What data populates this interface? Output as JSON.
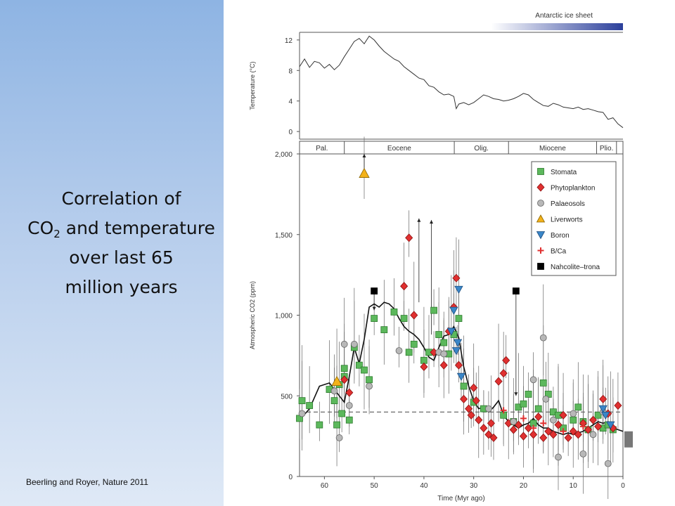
{
  "slide": {
    "title_line1": "Correlation of",
    "title_co": "CO",
    "title_sub": "2",
    "title_line2_rest": " and temperature",
    "title_line3": "over last 65",
    "title_line4": "million years",
    "citation": "Beerling and Royer, Nature 2011"
  },
  "colors": {
    "panel_top": "#8eb4e3",
    "panel_bottom": "#dfe9f6",
    "stomata": "#5cb85c",
    "phytoplankton": "#e03030",
    "palaeosols": "#b8b8b8",
    "liverworts": "#f3b21a",
    "boron": "#3a86c8",
    "bca": "#e03030",
    "nahcolite": "#000000",
    "ice": "#2b3f9b"
  },
  "chart_data": [
    {
      "type": "line",
      "title": "",
      "ice_label": "Antarctic ice sheet",
      "xlabel": "",
      "ylabel": "Temperature (°C)",
      "xlim": [
        65,
        0
      ],
      "ylim": [
        -1,
        13
      ],
      "yticks": [
        0,
        4,
        8,
        12
      ],
      "x": [
        65,
        64,
        63,
        62,
        61,
        60,
        59,
        58,
        57,
        56,
        55,
        54,
        53,
        52,
        51,
        50,
        49,
        48,
        47,
        46,
        45,
        44,
        43,
        42,
        41,
        40,
        39,
        38,
        37,
        36,
        35,
        34,
        33.5,
        33,
        32,
        31,
        30,
        29,
        28,
        27,
        26,
        25,
        24,
        23,
        22,
        21,
        20,
        19,
        18,
        17,
        16,
        15,
        14,
        13,
        12,
        11,
        10,
        9,
        8,
        7,
        6,
        5,
        4,
        3,
        2,
        1,
        0
      ],
      "values": [
        8.5,
        9.5,
        8.4,
        9.2,
        9.0,
        8.3,
        8.8,
        8.1,
        8.7,
        9.8,
        10.8,
        11.8,
        12.2,
        11.5,
        12.5,
        12.0,
        11.2,
        10.5,
        10.0,
        9.5,
        9.2,
        8.5,
        8.0,
        7.5,
        7.0,
        6.8,
        6.0,
        5.8,
        5.2,
        4.8,
        4.9,
        4.6,
        3.0,
        3.6,
        3.8,
        3.5,
        3.8,
        4.3,
        4.8,
        4.6,
        4.3,
        4.2,
        4.0,
        4.1,
        4.3,
        4.6,
        5.0,
        4.8,
        4.2,
        3.8,
        3.4,
        3.3,
        3.7,
        3.5,
        3.2,
        3.1,
        3.0,
        3.2,
        2.9,
        3.0,
        2.8,
        2.6,
        2.5,
        1.6,
        1.8,
        1.0,
        0.5
      ],
      "ice_sheet_range": [
        35,
        0
      ]
    },
    {
      "type": "scatter",
      "title": "",
      "xlabel": "Time (Myr ago)",
      "ylabel": "Atmospheric CO2 (ppm)",
      "xlim": [
        65,
        0
      ],
      "ylim": [
        0,
        2000
      ],
      "xticks": [
        60,
        50,
        40,
        30,
        20,
        10,
        0
      ],
      "yticks": [
        0,
        500,
        1000,
        1500,
        2000
      ],
      "epochs": [
        {
          "name": "Pal.",
          "start": 65,
          "end": 56
        },
        {
          "name": "Eocene",
          "start": 56,
          "end": 33.9
        },
        {
          "name": "Olig.",
          "start": 33.9,
          "end": 23
        },
        {
          "name": "Miocene",
          "start": 23,
          "end": 5.3
        },
        {
          "name": "Plio.",
          "start": 5.3,
          "end": 1.3
        }
      ],
      "reference_level": 400,
      "loess": {
        "x": [
          65,
          63,
          61,
          59,
          57,
          56,
          55,
          54,
          53,
          52,
          51,
          50,
          49,
          48,
          47,
          46,
          45,
          44,
          43,
          42,
          41,
          40,
          39,
          38,
          37,
          36,
          35,
          34,
          33,
          32,
          31,
          30,
          29,
          28,
          27,
          26,
          25,
          24,
          23,
          22,
          21,
          20,
          19,
          18,
          17,
          16,
          15,
          14,
          13,
          12,
          11,
          10,
          9,
          8,
          7,
          6,
          5,
          4,
          3,
          2,
          1,
          0
        ],
        "y": [
          350,
          420,
          560,
          580,
          500,
          460,
          620,
          800,
          700,
          850,
          1050,
          1070,
          1050,
          1080,
          1070,
          1040,
          980,
          930,
          900,
          880,
          850,
          800,
          740,
          720,
          800,
          870,
          880,
          930,
          860,
          680,
          560,
          470,
          420,
          430,
          400,
          430,
          470,
          380,
          340,
          320,
          300,
          320,
          330,
          360,
          320,
          300,
          300,
          280,
          270,
          260,
          270,
          260,
          270,
          280,
          300,
          320,
          340,
          330,
          340,
          300,
          290,
          280
        ]
      },
      "series": [
        {
          "name": "Stomata",
          "marker": "square",
          "x": [
            65,
            64.5,
            63,
            61,
            59,
            58,
            57.5,
            57,
            56.5,
            56,
            56,
            55,
            54,
            53,
            52,
            51,
            50,
            48,
            46,
            44,
            43,
            42,
            40,
            39,
            38,
            37,
            36,
            35,
            34,
            33,
            32,
            30,
            28,
            24,
            22,
            21,
            20,
            19,
            18,
            17,
            16,
            15,
            14,
            13,
            12,
            10,
            9,
            8,
            7,
            5,
            4,
            3,
            2
          ],
          "y": [
            360,
            470,
            440,
            320,
            540,
            470,
            320,
            570,
            390,
            620,
            670,
            350,
            800,
            690,
            660,
            600,
            980,
            910,
            1020,
            980,
            770,
            820,
            720,
            770,
            1030,
            880,
            830,
            760,
            880,
            980,
            560,
            460,
            420,
            380,
            340,
            430,
            450,
            510,
            330,
            420,
            580,
            510,
            400,
            380,
            300,
            350,
            430,
            340,
            290,
            380,
            300,
            320,
            290
          ]
        },
        {
          "name": "Phytoplankton",
          "marker": "diamond",
          "x": [
            56,
            55,
            44,
            43,
            42,
            40,
            38,
            36,
            35,
            34,
            33.5,
            33,
            32,
            31,
            30.5,
            30,
            29.5,
            29,
            28,
            27,
            26.5,
            26,
            25,
            24,
            23.5,
            23,
            22,
            21,
            20,
            19,
            18,
            17,
            16,
            15,
            14,
            13,
            12,
            11,
            10,
            9,
            8,
            7,
            6,
            5,
            4,
            3,
            2,
            1
          ],
          "y": [
            600,
            520,
            1180,
            1480,
            1000,
            680,
            770,
            690,
            900,
            1050,
            1230,
            690,
            480,
            420,
            380,
            550,
            470,
            350,
            300,
            260,
            330,
            240,
            590,
            640,
            720,
            330,
            290,
            320,
            250,
            300,
            260,
            370,
            240,
            280,
            260,
            320,
            380,
            240,
            280,
            260,
            330,
            290,
            350,
            310,
            480,
            390,
            300,
            440
          ]
        },
        {
          "name": "Palaeosols",
          "marker": "circle",
          "x": [
            64.5,
            58,
            57,
            56,
            55,
            54,
            51,
            45,
            37,
            36,
            27,
            22,
            18,
            16,
            15.5,
            14,
            13,
            10,
            8,
            6,
            4,
            3
          ],
          "y": [
            390,
            530,
            240,
            820,
            440,
            820,
            560,
            780,
            770,
            760,
            420,
            340,
            600,
            860,
            480,
            350,
            120,
            390,
            140,
            260,
            400,
            80
          ]
        },
        {
          "name": "Liverworts",
          "marker": "triangle-up",
          "x": [
            57.5,
            52
          ],
          "y": [
            590,
            1880
          ]
        },
        {
          "name": "Boron",
          "marker": "triangle-down",
          "x": [
            34.5,
            34,
            33.5,
            33,
            32.5,
            33.2,
            4,
            3.5,
            2.5
          ],
          "y": [
            900,
            1030,
            780,
            1160,
            620,
            830,
            420,
            380,
            320
          ]
        },
        {
          "name": "B/Ca",
          "marker": "plus",
          "x": [
            24,
            20,
            18,
            16,
            12,
            8
          ],
          "y": [
            410,
            360,
            300,
            330,
            280,
            310
          ]
        },
        {
          "name": "Nahcolite–trona",
          "marker": "square",
          "x": [
            50,
            21.5
          ],
          "y": [
            1150,
            1150
          ]
        }
      ]
    }
  ]
}
